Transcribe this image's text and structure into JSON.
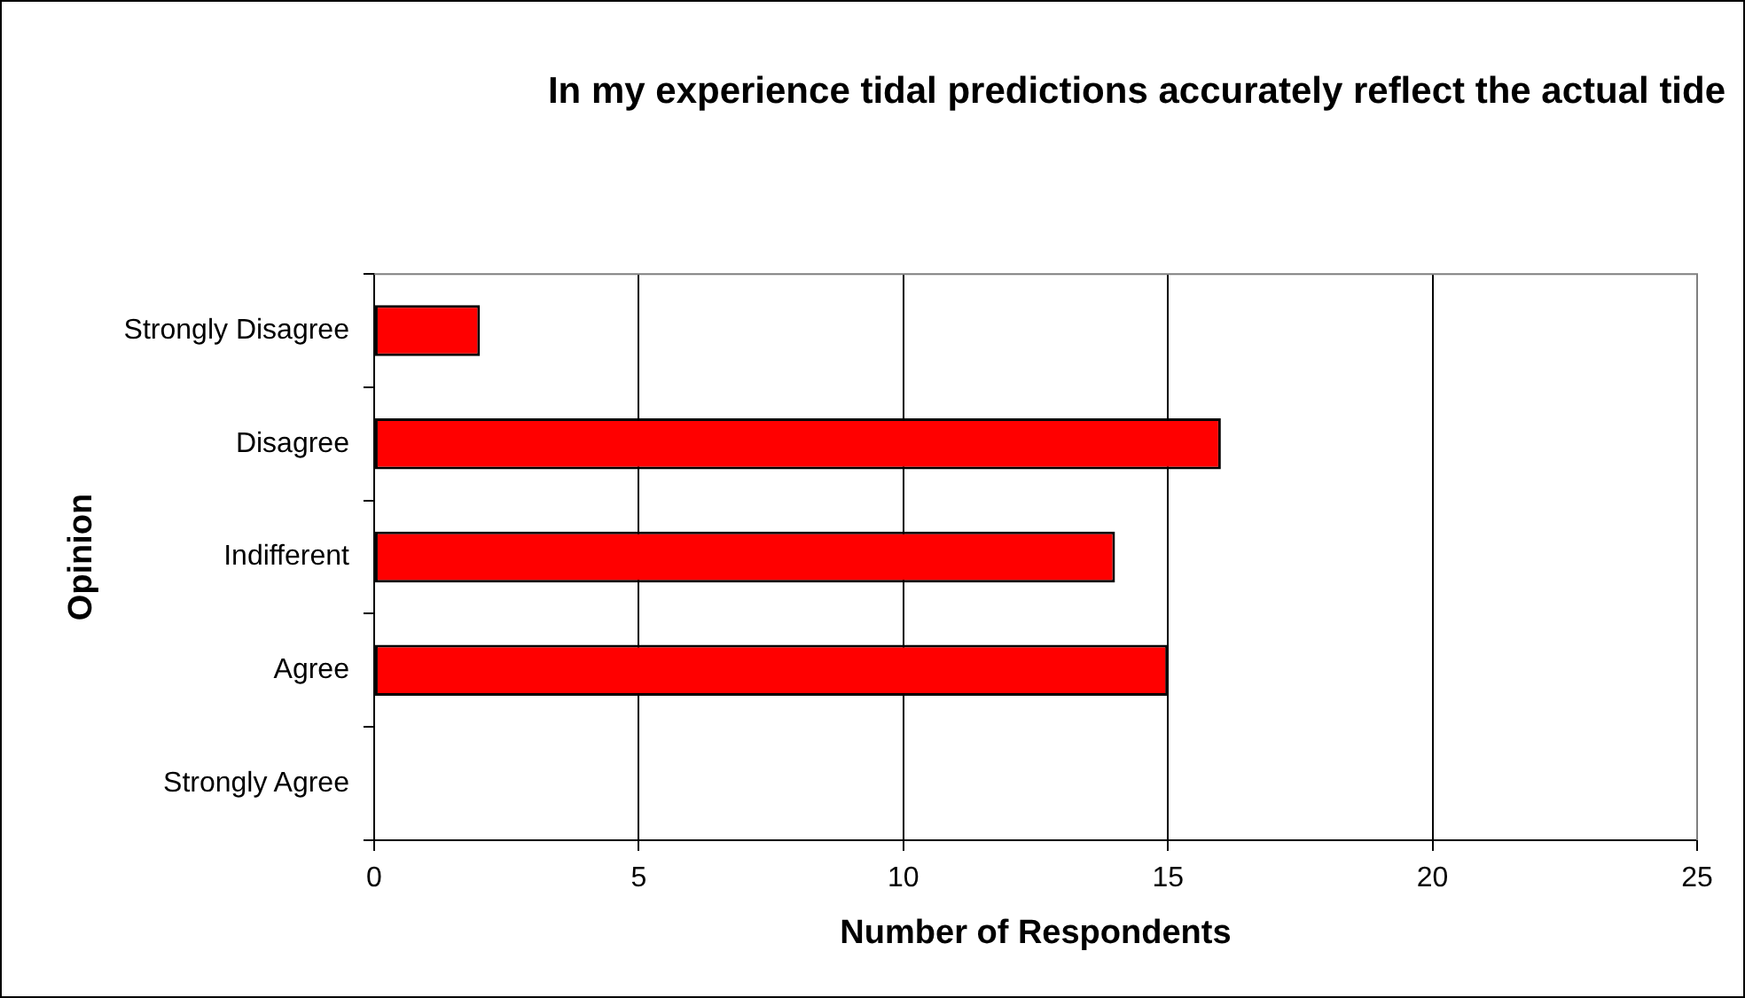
{
  "chart_data": {
    "type": "bar",
    "orientation": "horizontal",
    "title": "In my experience tidal predictions accurately reflect the actual tide",
    "xlabel": "Number of Respondents",
    "ylabel": "Opinion",
    "categories": [
      "Strongly Disagree",
      "Disagree",
      "Indifferent",
      "Agree",
      "Strongly Agree"
    ],
    "values": [
      2,
      16,
      14,
      15,
      0
    ],
    "color": "#ff0000",
    "xlim": [
      0,
      25
    ],
    "xticks": [
      0,
      5,
      10,
      15,
      20,
      25
    ],
    "grid": "x",
    "legend": false
  }
}
